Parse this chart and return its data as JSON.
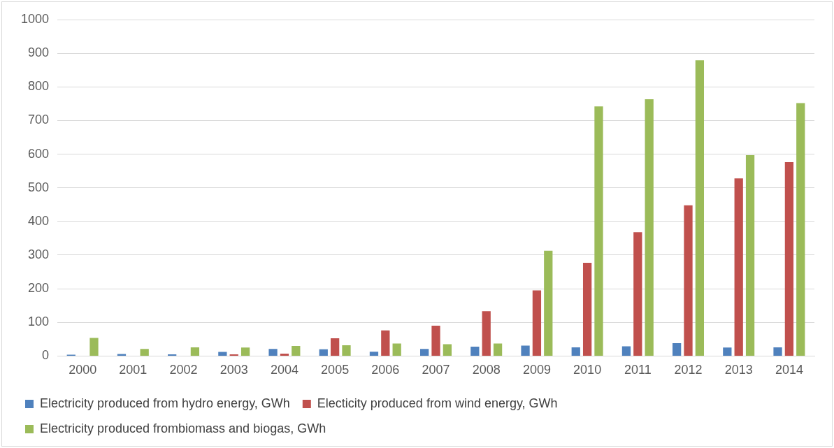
{
  "chart_data": {
    "type": "bar",
    "categories": [
      "2000",
      "2001",
      "2002",
      "2003",
      "2004",
      "2005",
      "2006",
      "2007",
      "2008",
      "2009",
      "2010",
      "2011",
      "2012",
      "2013",
      "2014"
    ],
    "series": [
      {
        "name": "Electricity produced from hydro energy, GWh",
        "color": "#4f81bd",
        "values": [
          4,
          6,
          5,
          12,
          21,
          20,
          13,
          21,
          28,
          31,
          26,
          29,
          38,
          25,
          26
        ]
      },
      {
        "name": "Electicity produced from wind energy, GWh",
        "color": "#c0504d",
        "values": [
          0,
          0,
          0,
          5,
          7,
          53,
          76,
          90,
          133,
          195,
          277,
          368,
          448,
          528,
          576
        ]
      },
      {
        "name": "Electricity produced frombiomass and biogas, GWh",
        "color": "#9bbb59",
        "values": [
          54,
          21,
          26,
          25,
          30,
          32,
          37,
          35,
          37,
          313,
          742,
          763,
          879,
          597,
          752
        ]
      }
    ],
    "ylim": [
      0,
      1000
    ],
    "yticks": [
      0,
      100,
      200,
      300,
      400,
      500,
      600,
      700,
      800,
      900,
      1000
    ],
    "grid": "y",
    "legend": "bottom"
  }
}
